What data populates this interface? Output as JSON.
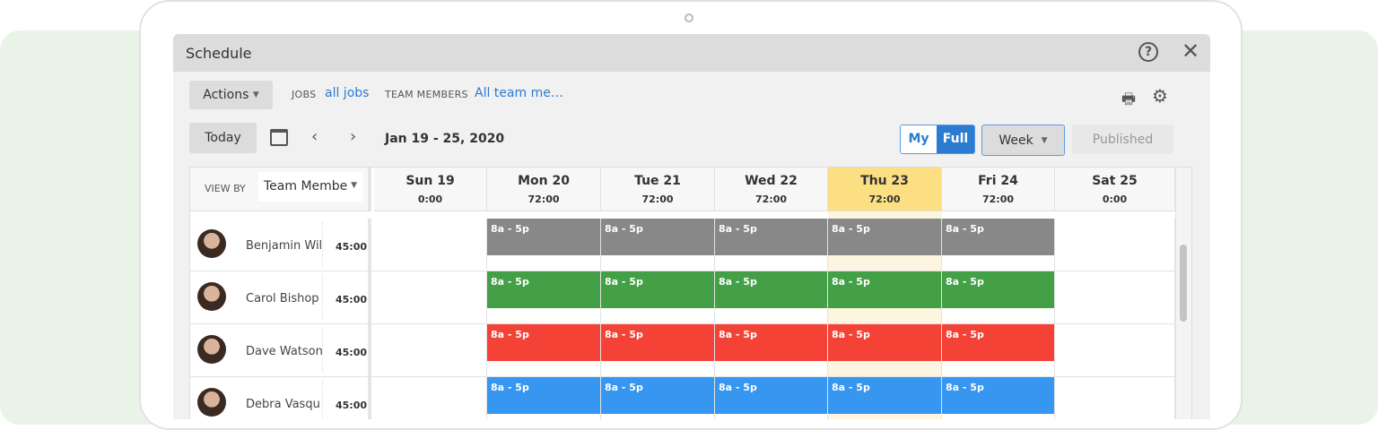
{
  "window": {
    "title": "Schedule"
  },
  "toolbar": {
    "actions_label": "Actions",
    "jobs_label": "JOBS",
    "jobs_value": "all jobs",
    "team_label": "TEAM MEMBERS",
    "team_value": "All team me…",
    "today_label": "Today",
    "date_range": "Jan 19 - 25, 2020",
    "my_label": "My",
    "full_label": "Full",
    "view_select": "Week",
    "published_label": "Published"
  },
  "grid": {
    "view_by_label": "VIEW BY",
    "view_by_value": "Team Membe",
    "days": [
      {
        "label": "Sun 19",
        "hours": "0:00"
      },
      {
        "label": "Mon 20",
        "hours": "72:00"
      },
      {
        "label": "Tue 21",
        "hours": "72:00"
      },
      {
        "label": "Wed 22",
        "hours": "72:00"
      },
      {
        "label": "Thu 23",
        "hours": "72:00",
        "today": true
      },
      {
        "label": "Fri 24",
        "hours": "72:00"
      },
      {
        "label": "Sat 25",
        "hours": "0:00"
      }
    ],
    "members": [
      {
        "name": "Benjamin Wil",
        "hours": "45:00",
        "color": "#888888",
        "shift": "8a - 5p"
      },
      {
        "name": "Carol Bishop",
        "hours": "45:00",
        "color": "#43a047",
        "shift": "8a - 5p"
      },
      {
        "name": "Dave Watson",
        "hours": "45:00",
        "color": "#f44336",
        "shift": "8a - 5p"
      },
      {
        "name": "Debra Vasqu",
        "hours": "45:00",
        "color": "#3796f0",
        "shift": "8a - 5p"
      }
    ]
  },
  "colors": {
    "accent": "#2b7bd0",
    "today": "#fbdf82"
  }
}
